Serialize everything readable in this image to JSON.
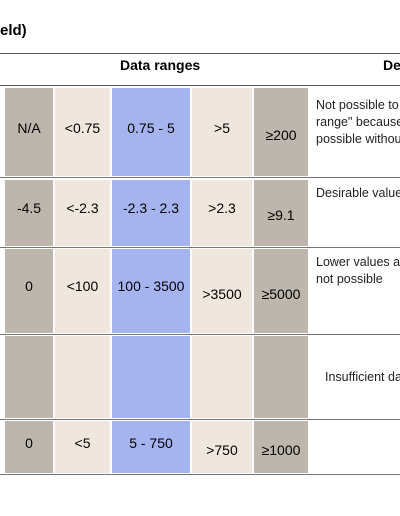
{
  "title": "eld)",
  "headers": {
    "data_ranges": "Data ranges",
    "description": "De"
  },
  "rows": [
    {
      "cells": [
        "N/A",
        "<0.75",
        "0.75 - 5",
        ">5",
        "≥200"
      ],
      "desc": [
        "Not possible to",
        "range\" because",
        "possible withou"
      ]
    },
    {
      "cells": [
        "-4.5",
        "<-2.3",
        "-2.3 - 2.3",
        ">2.3",
        "≥9.1"
      ],
      "desc": [
        "Desirable value"
      ]
    },
    {
      "cells": [
        "0",
        "<100",
        "100 - 3500",
        ">3500",
        "≥5000"
      ],
      "desc": [
        "Lower values ar",
        "not possible"
      ]
    },
    {
      "cells": [
        "",
        "",
        "",
        "",
        ""
      ],
      "desc": [
        "Insufficient da"
      ]
    },
    {
      "cells": [
        "0",
        "<5",
        "5 - 750",
        ">750",
        "≥1000"
      ],
      "desc": []
    }
  ]
}
